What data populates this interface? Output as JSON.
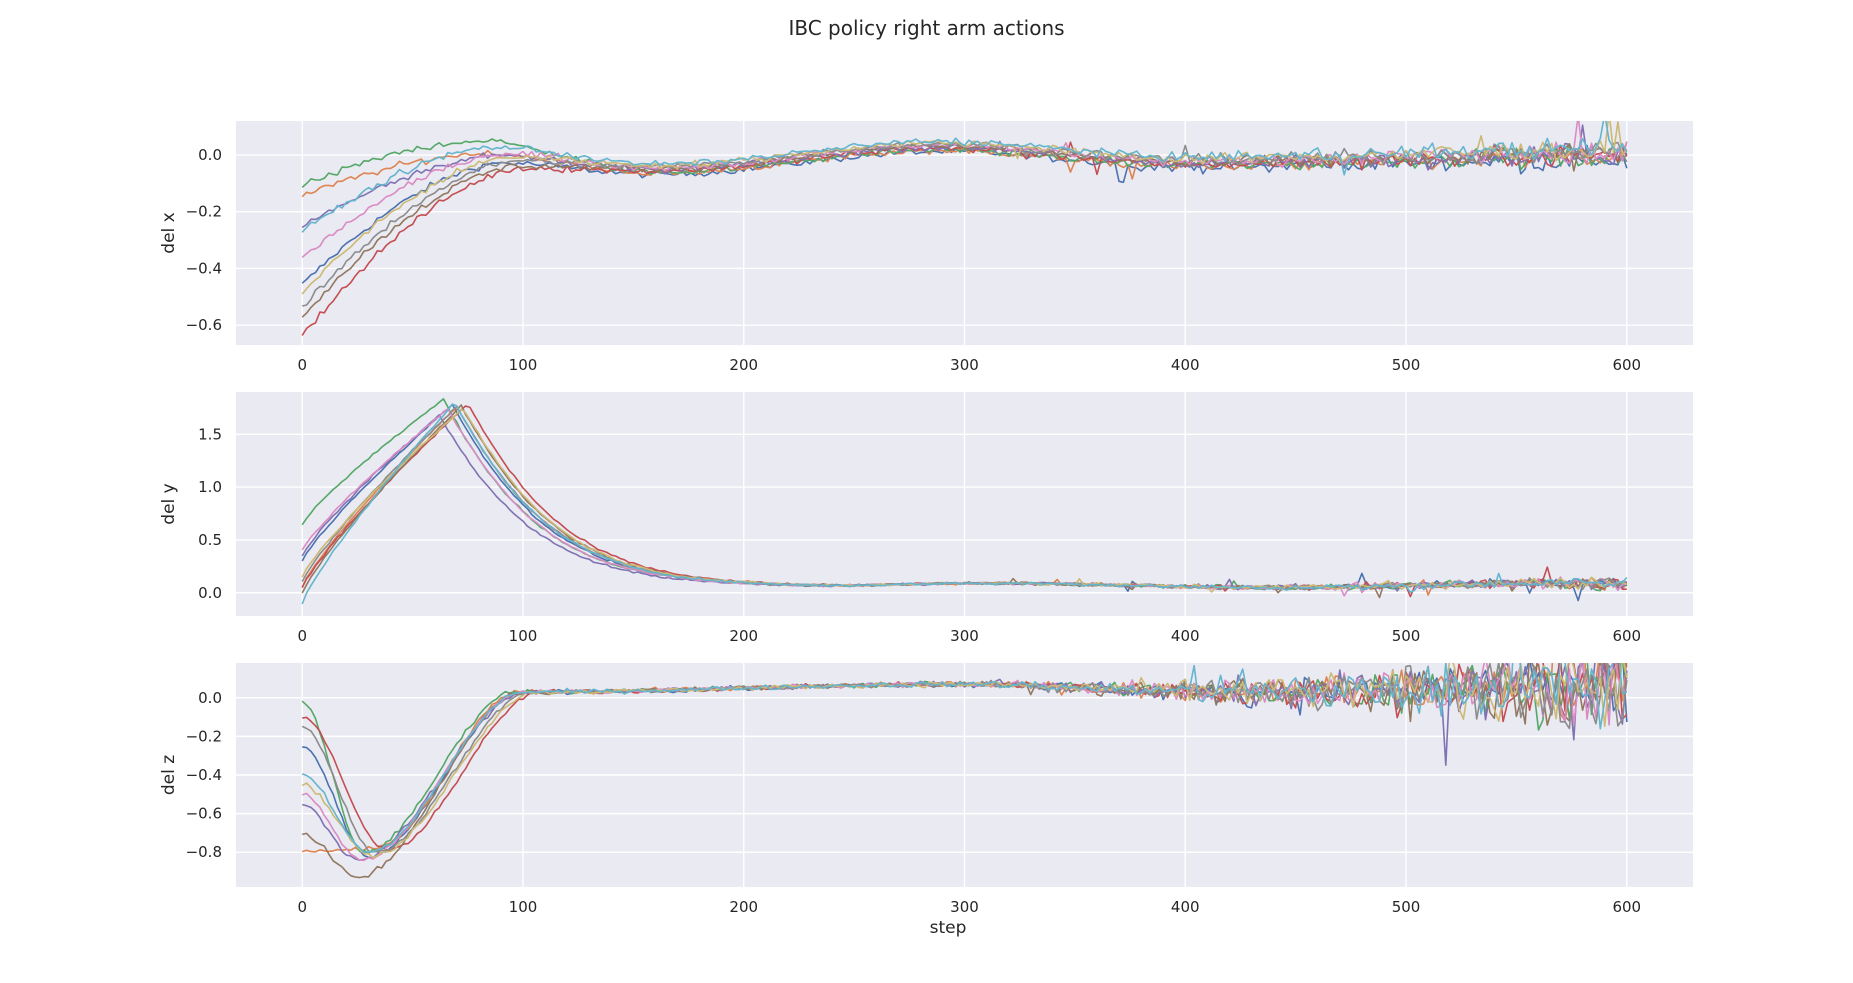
{
  "chart_data": {
    "type": "line",
    "title": "IBC policy right arm actions",
    "xlabel": "step",
    "grid": true,
    "legend": "none",
    "style": {
      "background": "#eaeaf2",
      "grid_color": "#ffffff"
    },
    "palette": [
      "#4c72b0",
      "#dd8452",
      "#55a868",
      "#c44e52",
      "#8172b3",
      "#937860",
      "#da8bc3",
      "#8c8c8c",
      "#ccb974",
      "#64b5cd"
    ],
    "x": {
      "range": [
        -30,
        630
      ],
      "ticks": [
        0,
        100,
        200,
        300,
        400,
        500,
        600
      ],
      "tick_labels": [
        "0",
        "100",
        "200",
        "300",
        "400",
        "500",
        "600"
      ]
    },
    "num_series": 10,
    "subplots": [
      {
        "ylabel": "del x",
        "ylim": [
          -0.67,
          0.12
        ],
        "yticks": [
          0.0,
          -0.2,
          -0.4,
          -0.6
        ],
        "ytick_labels": [
          "0.0",
          "−0.2",
          "−0.4",
          "−0.6"
        ],
        "profile": {
          "kind": "converge_x",
          "starts": [
            -0.44,
            -0.13,
            -0.1,
            -0.63,
            -0.25,
            -0.57,
            -0.37,
            -0.55,
            -0.5,
            -0.29
          ],
          "peak_x": [
            90,
            82,
            78,
            100,
            88,
            98,
            92,
            97,
            95,
            86
          ],
          "peak_y": [
            -0.01,
            0.02,
            0.06,
            -0.04,
            0.0,
            -0.04,
            0.0,
            -0.03,
            -0.02,
            0.01
          ],
          "noise": 0.012,
          "noise_growth": 0.03
        }
      },
      {
        "ylabel": "del y",
        "ylim": [
          -0.22,
          1.9
        ],
        "yticks": [
          0.0,
          0.5,
          1.0,
          1.5
        ],
        "ytick_labels": [
          "0.0",
          "0.5",
          "1.0",
          "1.5"
        ],
        "profile": {
          "kind": "peak_y",
          "starts": [
            0.3,
            0.05,
            0.65,
            0.05,
            0.35,
            0.0,
            0.4,
            0.1,
            0.15,
            -0.1
          ],
          "peak_x": [
            68,
            70,
            64,
            75,
            62,
            72,
            66,
            70,
            73,
            69
          ],
          "peak_y": [
            1.78,
            1.76,
            1.83,
            1.79,
            1.68,
            1.77,
            1.74,
            1.76,
            1.75,
            1.8
          ],
          "tail": 0.06,
          "noise": 0.01,
          "noise_growth": 0.05
        }
      },
      {
        "ylabel": "del z",
        "ylim": [
          -0.98,
          0.18
        ],
        "yticks": [
          0.0,
          -0.2,
          -0.4,
          -0.6,
          -0.8
        ],
        "ytick_labels": [
          "0.0",
          "−0.2",
          "−0.4",
          "−0.6",
          "−0.8"
        ],
        "profile": {
          "kind": "dip_z",
          "starts": [
            -0.25,
            -0.8,
            -0.02,
            -0.1,
            -0.55,
            -0.7,
            -0.5,
            -0.15,
            -0.45,
            -0.4
          ],
          "dip_x": [
            30,
            33,
            28,
            38,
            25,
            25,
            27,
            33,
            32,
            30
          ],
          "dip_y": [
            -0.82,
            -0.78,
            -0.8,
            -0.79,
            -0.84,
            -0.93,
            -0.84,
            -0.8,
            -0.82,
            -0.8
          ],
          "recover_x": [
            100,
            98,
            96,
            108,
            102,
            100,
            100,
            104,
            106,
            100
          ],
          "tail": 0.04,
          "noise": 0.012,
          "noise_growth": 0.22
        }
      }
    ]
  }
}
